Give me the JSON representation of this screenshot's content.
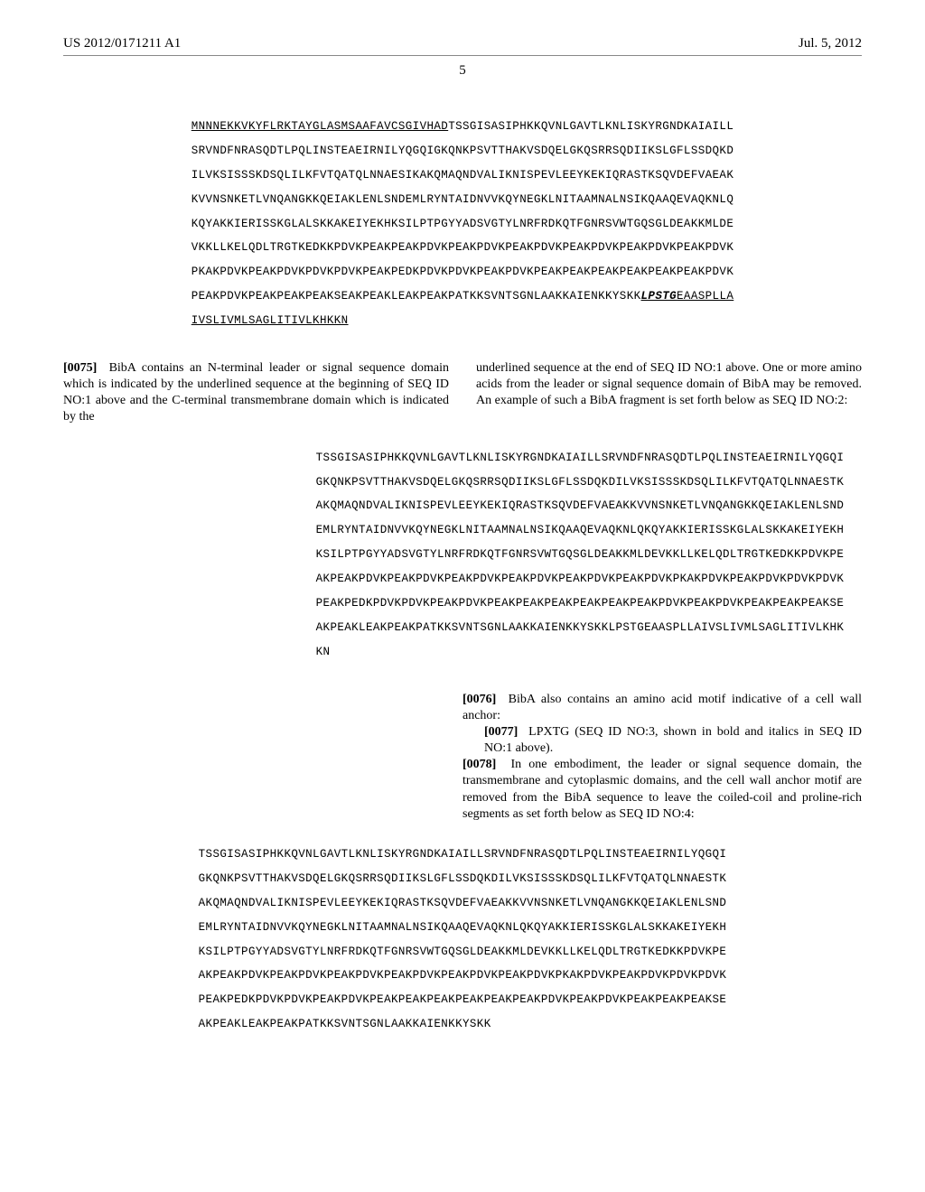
{
  "header": {
    "pubnum": "US 2012/0171211 A1",
    "date": "Jul. 5, 2012"
  },
  "pagenum": "5",
  "seq1": {
    "l1_underlined": "MNNNEKKVKYFLRKTAYGLASMSAAFAVCSGIVHAD",
    "l1_rest": "TSSGISASIPHKKQVNLGAVTLKNLISKYRGNDKAIAILL",
    "l2": "SRVNDFNRASQDTLPQLINSTEAEIRNILYQGQIGKQNKPSVTTHAKVSDQELGKQSRRSQDIIKSLGFLSSDQKD",
    "l3": "ILVKSISSSKDSQLILKFVTQATQLNNAESIKAKQMAQNDVALIKNISPEVLEEYKEKIQRASTKSQVDEFVAEAK",
    "l4": "KVVNSNKETLVNQANGKKQEIAKLENLSNDEMLRYNTAIDNVVKQYNEGKLNITAAMNALNSIKQAAQEVAQKNLQ",
    "l5": "KQYAKKIERISSKGLALSKKAKEIYEKHKSILPTPGYYADSVGTYLNRFRDKQTFGNRSVWTGQSGLDEAKKMLDE",
    "l6": "VKKLLKELQDLTRGTKEDKKPDVKPEAKPEAKPDVKPEAKPDVKPEAKPDVKPEAKPDVKPEAKPDVKPEAKPDVK",
    "l7": "PKAKPDVKPEAKPDVKPDVKPDVKPEAKPEDKPDVKPDVKPEAKPDVKPEAKPEAKPEAKPEAKPEAKPEAKPDVK",
    "l8_a": "PEAKPDVKPEAKPEAKPEAKSEAKPEAKLEAKPEAKPATKKSVNTSGNLAAKKAIENKKYSKK",
    "l8_lpstg": "LPSTG",
    "l8_b": "EAASPLLA",
    "l9": "IVSLIVMLSAGLITIVLKHKKN"
  },
  "para1": {
    "num": "[0075]",
    "text_left": "  BibA contains an N-terminal leader or signal sequence domain which is indicated by the underlined sequence at the beginning of SEQ ID NO:1 above and the C-terminal transmembrane domain which is indicated by the",
    "text_right": "underlined sequence at the end of SEQ ID NO:1 above. One or more amino acids from the leader or signal sequence domain of BibA may be removed. An example of such a BibA fragment is set forth below as SEQ ID NO:2:"
  },
  "seq2": {
    "l1": "TSSGISASIPHKKQVNLGAVTLKNLISKYRGNDKAIAILLSRVNDFNRASQDTLPQLINSTEAEIRNILYQGQI",
    "l2": "GKQNKPSVTTHAKVSDQELGKQSRRSQDIIKSLGFLSSDQKDILVKSISSSKDSQLILKFVTQATQLNNAESTK",
    "l3": "AKQMAQNDVALIKNISPEVLEEYKEKIQRASTKSQVDEFVAEAKKVVNSNKETLVNQANGKKQEIAKLENLSND",
    "l4": "EMLRYNTAIDNVVKQYNEGKLNITAAMNALNSIKQAAQEVAQKNLQKQYAKKIERISSKGLALSKKAKEIYEKH",
    "l5": "KSILPTPGYYADSVGTYLNRFRDKQTFGNRSVWTGQSGLDEAKKMLDEVKKLLKELQDLTRGTKEDKKPDVKPE",
    "l6": "AKPEAKPDVKPEAKPDVKPEAKPDVKPEAKPDVKPEAKPDVKPEAKPDVKPKAKPDVKPEAKPDVKPDVKPDVK",
    "l7": "PEAKPEDKPDVKPDVKPEAKPDVKPEAKPEAKPEAKPEAKPEAKPEAKPDVKPEAKPDVKPEAKPEAKPEAKSE",
    "l8": "AKPEAKLEAKPEAKPATKKSVNTSGNLAAKKAIENKKYSKKLPSTGEAASPLLAIVSLIVMLSAGLITIVLKHK",
    "l9": "KN"
  },
  "para2": {
    "p76_num": "[0076]",
    "p76_text": "  BibA also contains an amino acid motif indicative of a cell wall anchor:",
    "p77_num": "[0077]",
    "p77_text": "  LPXTG (SEQ ID NO:3, shown in bold and italics in SEQ ID NO:1 above).",
    "p78_num": "[0078]",
    "p78_text": "  In one embodiment, the leader or signal sequence domain, the transmembrane and cytoplasmic domains, and the cell wall anchor motif are removed from the BibA sequence to leave the coiled-coil and proline-rich segments as set forth below as SEQ ID NO:4:"
  },
  "seq3": {
    "l1": "TSSGISASIPHKKQVNLGAVTLKNLISKYRGNDKAIAILLSRVNDFNRASQDTLPQLINSTEAEIRNILYQGQI",
    "l2": "GKQNKPSVTTHAKVSDQELGKQSRRSQDIIKSLGFLSSDQKDILVKSISSSKDSQLILKFVTQATQLNNAESTK",
    "l3": "AKQMAQNDVALIKNISPEVLEEYKEKIQRASTKSQVDEFVAEAKKVVNSNKETLVNQANGKKQEIAKLENLSND",
    "l4": "EMLRYNTAIDNVVKQYNEGKLNITAAMNALNSIKQAAQEVAQKNLQKQYAKKIERISSKGLALSKKAKEIYEKH",
    "l5": "KSILPTPGYYADSVGTYLNRFRDKQTFGNRSVWTGQSGLDEAKKMLDEVKKLLKELQDLTRGTKEDKKPDVKPE",
    "l6": "AKPEAKPDVKPEAKPDVKPEAKPDVKPEAKPDVKPEAKPDVKPEAKPDVKPKAKPDVKPEAKPDVKPDVKPDVK",
    "l7": "PEAKPEDKPDVKPDVKPEAKPDVKPEAKPEAKPEAKPEAKPEAKPEAKPDVKPEAKPDVKPEAKPEAKPEAKSE",
    "l8": "AKPEAKLEAKPEAKPATKKSVNTSGNLAAKKAIENKKYSKK"
  }
}
